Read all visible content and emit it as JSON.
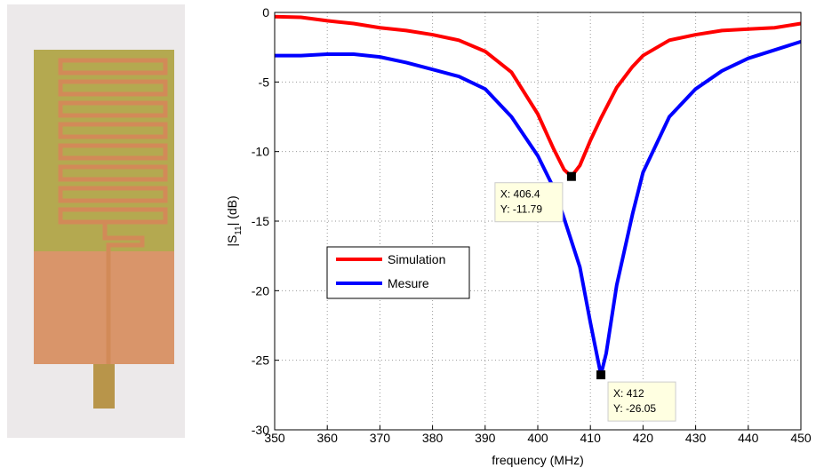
{
  "chart_data": {
    "type": "line",
    "xlabel": "frequency (MHz)",
    "ylabel": [
      "|S",
      "11",
      "| (dB)"
    ],
    "xlim": [
      350,
      450
    ],
    "xticks": [
      350,
      360,
      370,
      380,
      390,
      400,
      410,
      420,
      430,
      440,
      450
    ],
    "ylim": [
      -30,
      0
    ],
    "yticks": [
      -30,
      -25,
      -20,
      -15,
      -10,
      -5,
      0
    ],
    "grid": true,
    "legend_position": "center-left",
    "series": [
      {
        "name": "Simulation",
        "color": "#ff0000",
        "x": [
          350,
          355,
          360,
          365,
          370,
          375,
          380,
          385,
          390,
          395,
          400,
          403,
          405,
          406.4,
          408,
          410,
          412,
          415,
          418,
          420,
          425,
          430,
          435,
          440,
          445,
          450
        ],
        "values": [
          -0.3,
          -0.35,
          -0.6,
          -0.8,
          -1.1,
          -1.3,
          -1.6,
          -2.0,
          -2.8,
          -4.3,
          -7.3,
          -9.8,
          -11.3,
          -11.79,
          -11.0,
          -9.2,
          -7.6,
          -5.4,
          -3.9,
          -3.1,
          -2.0,
          -1.6,
          -1.3,
          -1.2,
          -1.1,
          -0.8
        ]
      },
      {
        "name": "Mesure",
        "color": "#0000ff",
        "x": [
          350,
          355,
          360,
          365,
          370,
          375,
          380,
          385,
          390,
          395,
          400,
          403,
          405,
          408,
          410,
          412,
          413,
          415,
          418,
          420,
          425,
          430,
          435,
          440,
          445,
          450
        ],
        "values": [
          -3.1,
          -3.1,
          -3.0,
          -3.0,
          -3.2,
          -3.6,
          -4.1,
          -4.6,
          -5.5,
          -7.5,
          -10.3,
          -12.6,
          -14.8,
          -18.3,
          -22.3,
          -26.05,
          -24.5,
          -19.6,
          -14.5,
          -11.5,
          -7.5,
          -5.5,
          -4.2,
          -3.3,
          -2.7,
          -2.1
        ]
      }
    ],
    "annotations": [
      {
        "x": 406.4,
        "y": -11.79,
        "text": [
          "X: 406.4",
          "Y: -11.79"
        ]
      },
      {
        "x": 412,
        "y": -26.05,
        "text": [
          "X: 412",
          "Y: -26.05"
        ]
      }
    ]
  }
}
